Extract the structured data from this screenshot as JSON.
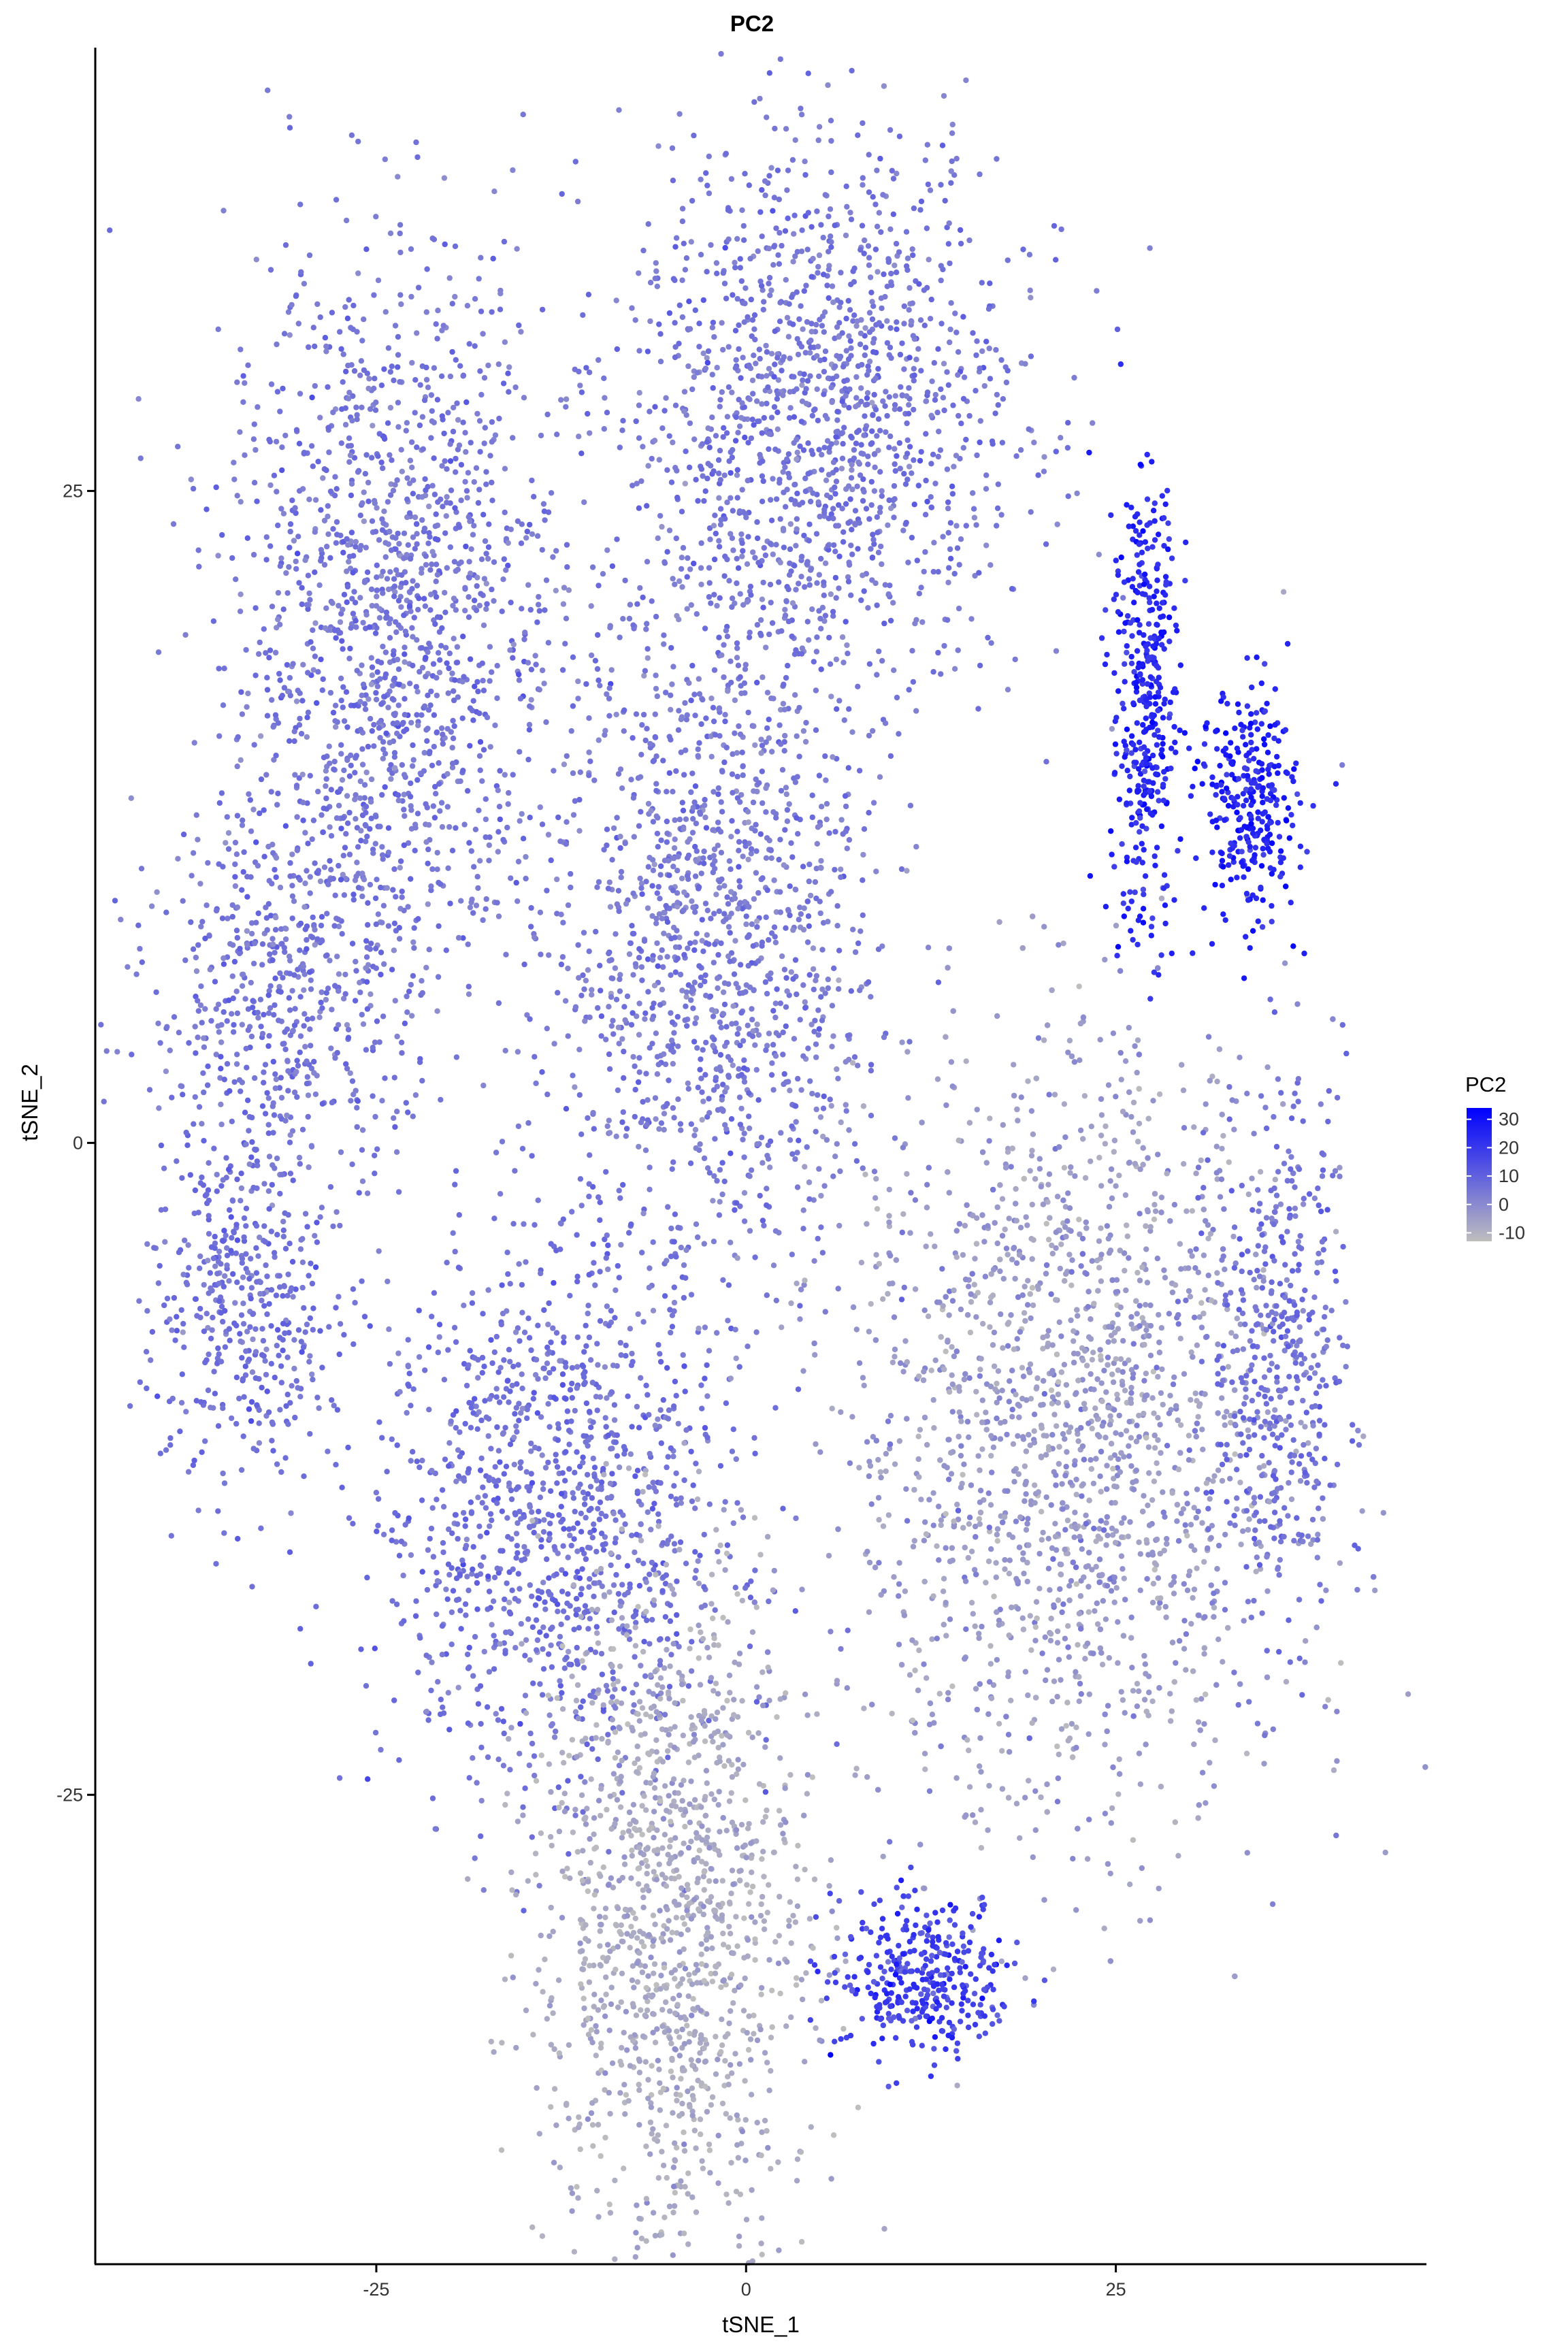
{
  "chart_data": {
    "type": "scatter",
    "title": "PC2",
    "xlabel": "tSNE_1",
    "ylabel": "tSNE_2",
    "xlim": [
      -44,
      46
    ],
    "ylim": [
      -43,
      42
    ],
    "xticks": [
      -25,
      0,
      25
    ],
    "yticks": [
      -25,
      0,
      25
    ],
    "grid": false,
    "legend": {
      "title": "PC2",
      "placement": "right",
      "type": "colorbar",
      "ticks": [
        30,
        20,
        10,
        0,
        -10
      ],
      "range": [
        -13,
        34
      ],
      "low_color": "#bebebe",
      "high_color": "#0000ff"
    },
    "marker_color_by": "PC2",
    "clusters": [
      {
        "label": "upper-left large group",
        "center": [
          -24,
          20
        ],
        "spread": [
          7.5,
          9.5
        ],
        "n": 1500,
        "value_mean": 5,
        "value_sd": 3
      },
      {
        "label": "left middle group",
        "center": [
          -31,
          6
        ],
        "spread": [
          6,
          5
        ],
        "n": 500,
        "value_mean": 5,
        "value_sd": 3
      },
      {
        "label": "far-left group",
        "center": [
          -34,
          -6
        ],
        "spread": [
          4,
          5
        ],
        "n": 450,
        "value_mean": 6,
        "value_sd": 3
      },
      {
        "label": "lower-left group",
        "center": [
          -13,
          -14
        ],
        "spread": [
          8,
          7
        ],
        "n": 1200,
        "value_mean": 6,
        "value_sd": 3
      },
      {
        "label": "upper-center group",
        "center": [
          5,
          28
        ],
        "spread": [
          9,
          7
        ],
        "n": 1400,
        "value_mean": 5,
        "value_sd": 3
      },
      {
        "label": "center group",
        "center": [
          -2,
          8
        ],
        "spread": [
          7,
          9
        ],
        "n": 1300,
        "value_mean": 4,
        "value_sd": 3
      },
      {
        "label": "right group",
        "center": [
          22,
          -11
        ],
        "spread": [
          10,
          10
        ],
        "n": 2200,
        "value_mean": -4,
        "value_sd": 4
      },
      {
        "label": "right group outer edge",
        "center": [
          36,
          -8
        ],
        "spread": [
          3,
          7
        ],
        "n": 450,
        "value_mean": 6,
        "value_sd": 3
      },
      {
        "label": "upper-right arm",
        "center": [
          27,
          17
        ],
        "spread": [
          1.5,
          6
        ],
        "n": 400,
        "value_mean": 24,
        "value_sd": 4
      },
      {
        "label": "upper-right branch",
        "center": [
          34,
          13
        ],
        "spread": [
          2.2,
          3
        ],
        "n": 300,
        "value_mean": 25,
        "value_sd": 4
      },
      {
        "label": "bottom-center group",
        "center": [
          -5,
          -30
        ],
        "spread": [
          6,
          9
        ],
        "n": 1300,
        "value_mean": -8,
        "value_sd": 3
      },
      {
        "label": "bottom arc highlight",
        "center": [
          12,
          -32
        ],
        "spread": [
          4,
          2
        ],
        "n": 350,
        "value_mean": 18,
        "value_sd": 5
      }
    ]
  }
}
